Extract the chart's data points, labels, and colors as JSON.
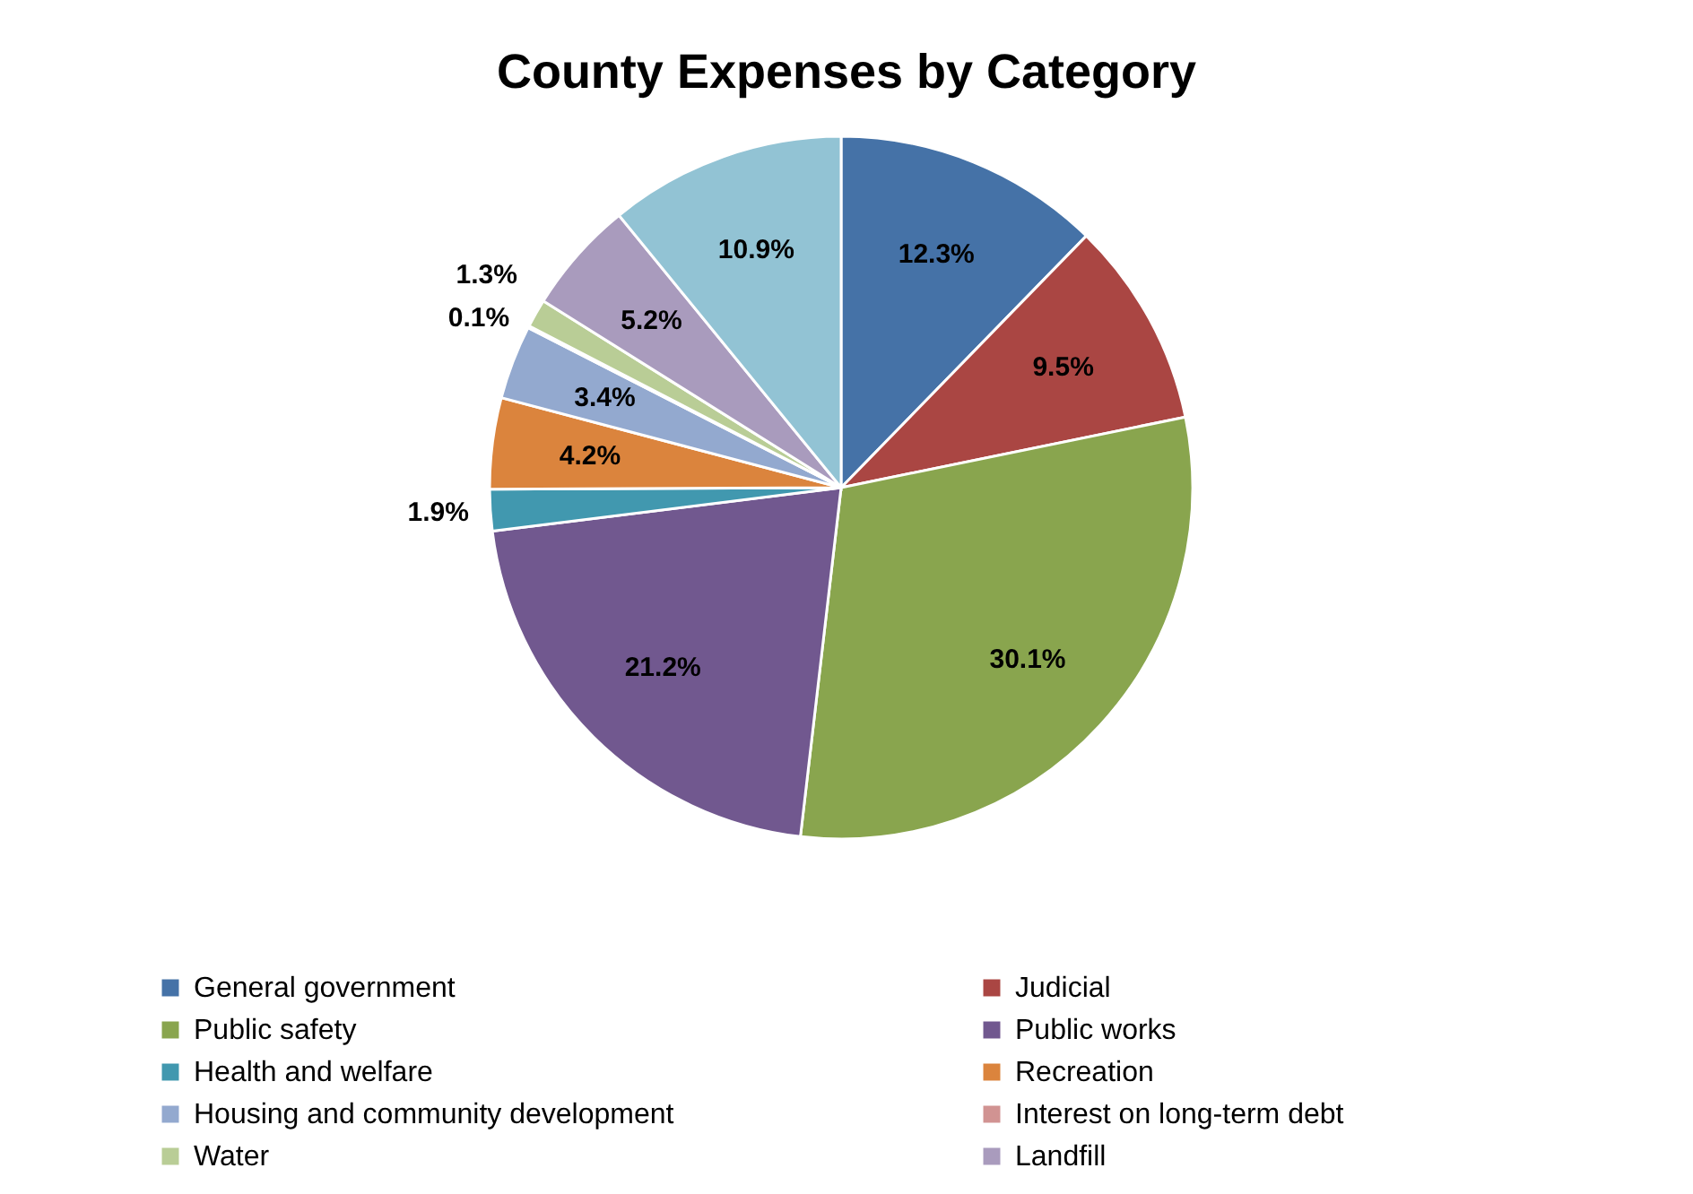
{
  "chart_data": {
    "type": "pie",
    "title": "County Expenses by Category",
    "categories": [
      "General government",
      "Judicial",
      "Public safety",
      "Public works",
      "Health and welfare",
      "Recreation",
      "Housing and community development",
      "Interest on long-term debt",
      "Water",
      "Landfill",
      null
    ],
    "values": [
      12.3,
      9.5,
      30.1,
      21.2,
      1.9,
      4.2,
      3.4,
      0.1,
      1.3,
      5.2,
      10.9
    ],
    "colors": [
      "#4572a7",
      "#aa4643",
      "#89a54e",
      "#71588f",
      "#4198af",
      "#db843d",
      "#93a9cf",
      "#d19392",
      "#b9cd96",
      "#a99bbd",
      "#92c3d4"
    ],
    "value_labels": [
      "12.3%",
      "9.5%",
      "30.1%",
      "21.2%",
      "1.9%",
      "4.2%",
      "3.4%",
      "0.1%",
      "1.3%",
      "5.2%",
      "10.9%"
    ],
    "legend": "bottom"
  }
}
